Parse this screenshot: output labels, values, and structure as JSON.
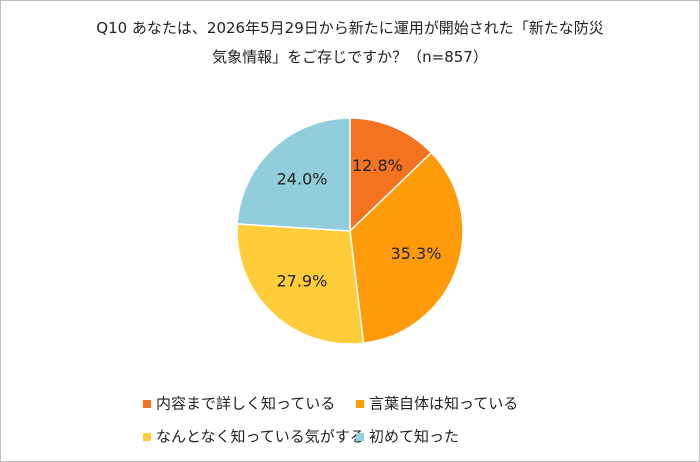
{
  "chart_data": {
    "type": "pie",
    "title": "Q10 あなたは、2026年5月29日から新たに運用が開始された「新たな防災気象情報」をご存じですか？（n=857）",
    "categories": [
      "内容まで詳しく知っている",
      "言葉自体は知っている",
      "なんとなく知っている気がする",
      "初めて知った"
    ],
    "values": [
      12.8,
      35.3,
      27.9,
      24.0
    ],
    "value_labels": [
      "12.8%",
      "35.3%",
      "27.9%",
      "24.0%"
    ],
    "colors": [
      "#f47321",
      "#ff9a0a",
      "#ffcc3a",
      "#92cddc"
    ],
    "legend": "bottom"
  }
}
